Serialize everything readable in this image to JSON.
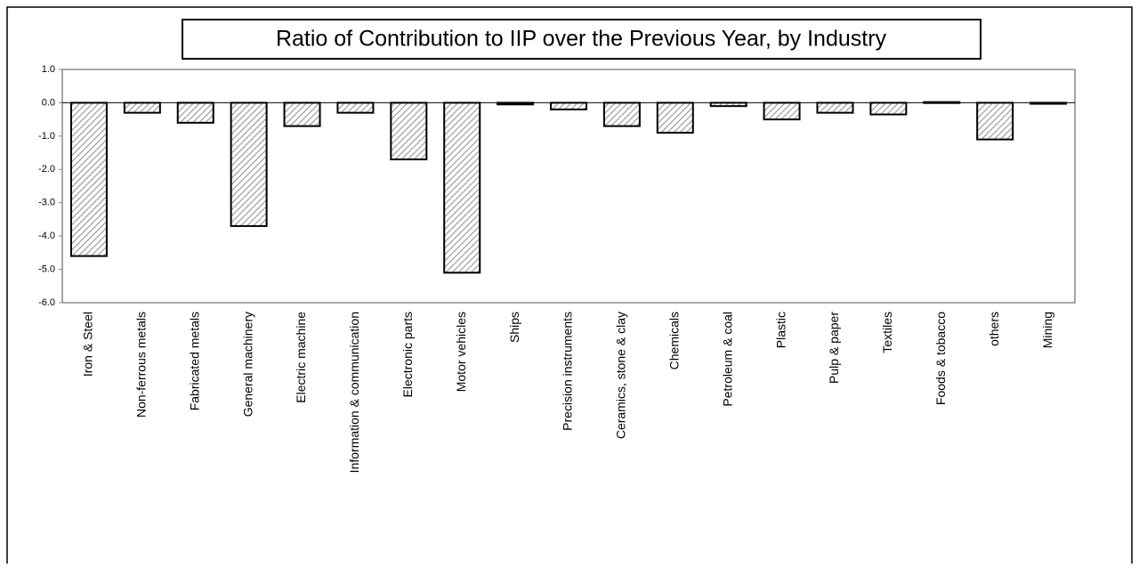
{
  "chart_data": {
    "type": "bar",
    "title": "Ratio of Contribution to IIP over the Previous Year, by Industry",
    "categories": [
      "Iron & Steel",
      "Non-ferrous metals",
      "Fabricated metals",
      "General machinery",
      "Electric machine",
      "Information & communication",
      "Electronic parts",
      "Motor vehicles",
      "Ships",
      "Precision instruments",
      "Ceramics, stone & clay",
      "Chemicals",
      "Petroleum & coal",
      "Plastic",
      "Pulp & paper",
      "Textiles",
      "Foods & tobacco",
      "others",
      "Mining"
    ],
    "values": [
      -4.6,
      -0.3,
      -0.6,
      -3.7,
      -0.7,
      -0.3,
      -1.7,
      -5.1,
      -0.05,
      -0.2,
      -0.7,
      -0.9,
      -0.1,
      -0.5,
      -0.3,
      -0.35,
      0.02,
      -1.1,
      -0.03
    ],
    "color": "#d0d0d0",
    "ylim": [
      -6,
      1
    ],
    "yticks": [
      {
        "value": 1,
        "label": "1.0"
      },
      {
        "value": 0,
        "label": "0.0"
      },
      {
        "value": -1,
        "label": "-1.0"
      },
      {
        "value": -2,
        "label": "-2.0"
      },
      {
        "value": -3,
        "label": "-3.0"
      },
      {
        "value": -4,
        "label": "-4.0"
      },
      {
        "value": -5,
        "label": "-5.0"
      },
      {
        "value": -6,
        "label": "-6.0"
      }
    ],
    "grid": false
  }
}
